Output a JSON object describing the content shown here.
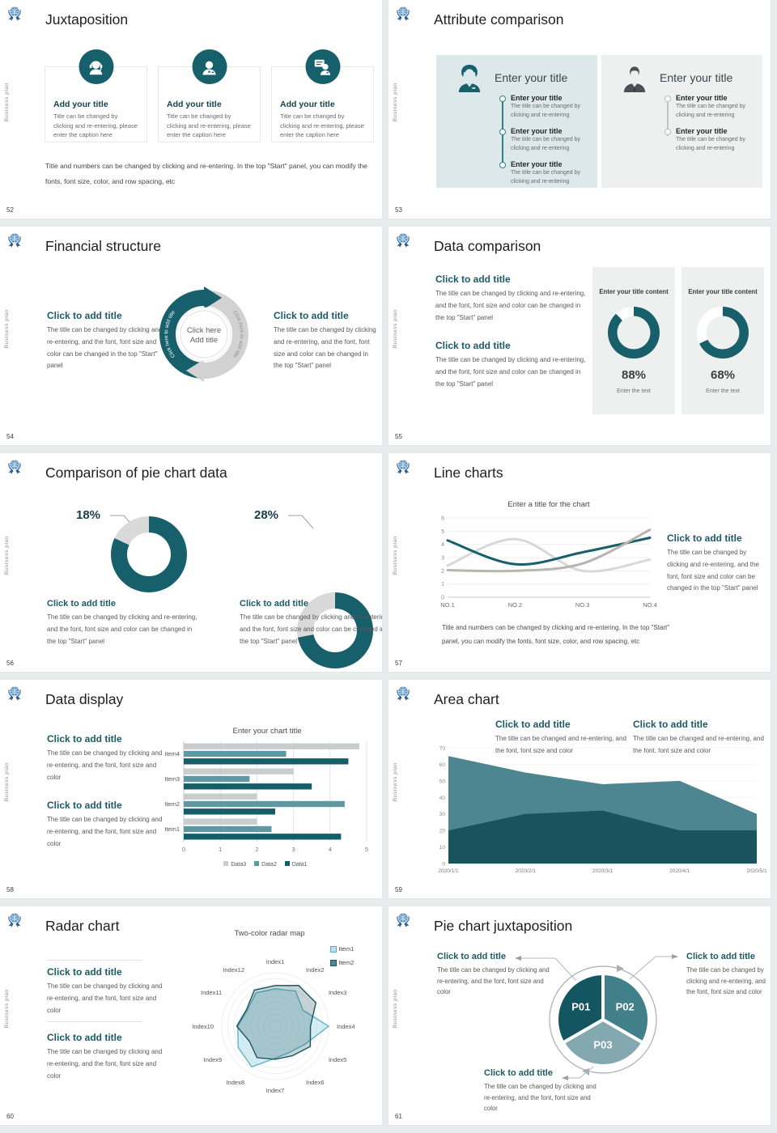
{
  "brand": {
    "sidebar_text": "Business plan",
    "accent": "#16606b"
  },
  "slides": {
    "s52": {
      "title": "Juxtaposition",
      "page": "52",
      "cards": [
        {
          "icon": "headset-person-icon",
          "title": "Add your title",
          "body": "Title can be changed by clicking and re-entering, please enter the caption here"
        },
        {
          "icon": "person-icon",
          "title": "Add your title",
          "body": "Title can be changed by clicking and re-entering, please enter the caption here"
        },
        {
          "icon": "presenter-person-icon",
          "title": "Add your title",
          "body": "Title can be changed by clicking and re-entering, please enter the caption here"
        }
      ],
      "note": "Title and numbers can be changed by clicking and re-entering. In the top \"Start\" panel, you can modify the fonts, font size, color, and row spacing, etc"
    },
    "s53": {
      "title": "Attribute comparison",
      "page": "53",
      "panels": [
        {
          "icon": "female-person-icon",
          "title": "Enter your title",
          "items": [
            {
              "t": "Enter your title",
              "b": "The title can be changed by clicking and re-entering"
            },
            {
              "t": "Enter your title",
              "b": "The title can be changed by clicking and re-entering"
            },
            {
              "t": "Enter your title",
              "b": "The title can be changed by clicking and re-entering"
            }
          ]
        },
        {
          "icon": "male-person-icon",
          "title": "Enter your title",
          "items": [
            {
              "t": "Enter your title",
              "b": "The title can be changed by clicking and re-entering"
            },
            {
              "t": "Enter your title",
              "b": "The title can be changed by clicking and re-entering"
            }
          ]
        }
      ]
    },
    "s54": {
      "title": "Financial structure",
      "page": "54",
      "left": {
        "t": "Click to add title",
        "b": "The title can be changed by clicking and re-entering, and the font, font size and color can be changed in the top \"Start\" panel"
      },
      "right": {
        "t": "Click to add title",
        "b": "The title can be changed by clicking and re-entering, and the font, font size and color can be changed in the top \"Start\" panel"
      },
      "arc_text_left": "Click here to add title",
      "arc_text_right": "Click here to add title",
      "center_line1": "Click here",
      "center_line2": "Add title"
    },
    "s55": {
      "title": "Data comparison",
      "page": "55",
      "blocks": [
        {
          "t": "Click to add title",
          "b": "The title can be changed by clicking and re-entering, and the font, font size and color can be changed in the top \"Start\" panel"
        },
        {
          "t": "Click to add title",
          "b": "The title can be changed by clicking and re-entering, and the font, font size and color can be changed in the top \"Start\" panel"
        }
      ]
    },
    "s56": {
      "title": "Comparison of pie chart data",
      "page": "56",
      "groups": [
        {
          "t": "Click to add title",
          "b": "The title can be changed by clicking and re-entering, and the font, font size and color can be changed in the top \"Start\" panel"
        },
        {
          "t": "Click to add title",
          "b": "The title can be changed by clicking and re-entering, and the font, font size and color can be changed in the top \"Start\" panel"
        }
      ]
    },
    "s57": {
      "title": "Line charts",
      "page": "57",
      "right": {
        "t": "Click to add title",
        "b": "The title can be changed by clicking and re-entering, and the font, font size and color can be changed in the top \"Start\" panel"
      },
      "note": "Title and numbers can be changed by clicking and re-entering. In the top \"Start\" panel, you can modify the fonts, font size, color, and row spacing, etc"
    },
    "s58": {
      "title": "Data display",
      "page": "58",
      "blocks": [
        {
          "t": "Click to add title",
          "b": "The title can be changed by clicking and re-entering, and the font, font size and color"
        },
        {
          "t": "Click to add title",
          "b": "The title can be changed by clicking and re-entering, and the font, font size and color"
        }
      ]
    },
    "s59": {
      "title": "Area chart",
      "page": "59",
      "blocks": [
        {
          "t": "Click to add title",
          "b": "The title can be changed and re-entering, and the font, font size and color"
        },
        {
          "t": "Click to add title",
          "b": "The title can be changed and re-entering, and the font, font size and color"
        }
      ]
    },
    "s60": {
      "title": "Radar chart",
      "page": "60",
      "blocks": [
        {
          "t": "Click to add title",
          "b": "The title can be changed by clicking and re-entering, and the font, font size and color"
        },
        {
          "t": "Click to add title",
          "b": "The title can be changed by clicking and re-entering, and the font, font size and color"
        }
      ]
    },
    "s61": {
      "title": "Pie chart juxtaposition",
      "page": "61",
      "blocks": [
        {
          "t": "Click to add title",
          "b": "The title can be changed by clicking and re-entering, and the font, font size and color"
        },
        {
          "t": "Click to add title",
          "b": "The title can be changed by clicking and re-entering, and the font, font size and color"
        },
        {
          "t": "Click to add title",
          "b": "The title can be changed by clicking and re-entering, and the font, font size and color"
        }
      ]
    }
  },
  "chart_data": [
    {
      "id": "s55-donut-1",
      "type": "pie",
      "title": "Enter your title content",
      "label": "88%",
      "caption": "Enter the text",
      "segments": [
        {
          "color": "#17606b",
          "pct": 88
        },
        {
          "color": "#ffffff",
          "pct": 12
        }
      ]
    },
    {
      "id": "s55-donut-2",
      "type": "pie",
      "title": "Enter your title content",
      "label": "68%",
      "caption": "Enter the text",
      "segments": [
        {
          "color": "#17606b",
          "pct": 68
        },
        {
          "color": "#ffffff",
          "pct": 32
        }
      ]
    },
    {
      "id": "s56-donut-1",
      "type": "pie",
      "label": "18%",
      "segments": [
        {
          "color": "#17606b",
          "pct": 82
        },
        {
          "color": "#d9d9d9",
          "pct": 18
        }
      ]
    },
    {
      "id": "s56-donut-2",
      "type": "pie",
      "label": "28%",
      "segments": [
        {
          "color": "#17606b",
          "pct": 72
        },
        {
          "color": "#d9d9d9",
          "pct": 28
        }
      ]
    },
    {
      "id": "s57-line",
      "type": "line",
      "title": "Enter a title for the chart",
      "categories": [
        "NO.1",
        "NO.2",
        "NO.3",
        "NO.4"
      ],
      "ylim": [
        0,
        6
      ],
      "yticks": [
        0,
        1,
        2,
        3,
        4,
        5,
        6
      ],
      "grid": true,
      "legend": false,
      "series": [
        {
          "color": "#17606b",
          "values": [
            4.3,
            2.5,
            3.4,
            4.5
          ]
        },
        {
          "color": "#d8d8d8",
          "values": [
            2.4,
            4.4,
            2.0,
            2.85
          ]
        },
        {
          "color": "#b9b4ae",
          "values": [
            2.05,
            2.0,
            2.55,
            5.1
          ]
        }
      ]
    },
    {
      "id": "s58-bar",
      "type": "bar",
      "title": "Enter your chart title",
      "orientation": "horizontal",
      "categories": [
        "Item1",
        "Item2",
        "Item3",
        "Item4"
      ],
      "xlim": [
        0,
        5
      ],
      "xticks": [
        0,
        1,
        2,
        3,
        4,
        5
      ],
      "legend_position": "bottom",
      "series": [
        {
          "name": "Data1",
          "color": "#155d68",
          "values": [
            4.3,
            2.5,
            3.5,
            4.5
          ]
        },
        {
          "name": "Data2",
          "color": "#5e98a2",
          "values": [
            2.4,
            4.4,
            1.8,
            2.8
          ]
        },
        {
          "name": "Data3",
          "color": "#c9cdce",
          "values": [
            2.0,
            2.0,
            3.0,
            4.8
          ]
        }
      ]
    },
    {
      "id": "s59-area",
      "type": "area",
      "categories": [
        "2020/1/1",
        "2020/2/1",
        "2020/3/1",
        "2020/4/1",
        "2020/5/1"
      ],
      "ylim": [
        0,
        70
      ],
      "yticks": [
        0,
        10,
        20,
        30,
        40,
        50,
        60,
        70
      ],
      "series": [
        {
          "color": "#19535e",
          "values": [
            20,
            30,
            32,
            20,
            20
          ]
        },
        {
          "color": "#4d8691",
          "values": [
            65,
            55,
            48,
            50,
            30
          ]
        }
      ]
    },
    {
      "id": "s60-radar",
      "type": "radar",
      "title": "Two-color radar map",
      "rmax": 10,
      "categories": [
        "Index1",
        "Index2",
        "Index3",
        "Index4",
        "Index5",
        "Index6",
        "Index7",
        "Index8",
        "Index9",
        "Index10",
        "Index11",
        "Index12"
      ],
      "series": [
        {
          "name": "Item1",
          "color": "#63b3c7",
          "fill": "rgba(160,214,226,0.45)",
          "values": [
            7,
            7.6,
            6,
            10,
            6.6,
            5.6,
            6,
            8.8,
            8,
            7,
            6,
            7.2
          ]
        },
        {
          "name": "Item2",
          "color": "#1b5560",
          "fill": "rgba(27,85,96,0.25)",
          "values": [
            7.6,
            8.8,
            8.8,
            6.6,
            7.6,
            6.4,
            6.2,
            6.8,
            5.6,
            7.2,
            6.2,
            7.8
          ]
        }
      ]
    },
    {
      "id": "s61-pie",
      "type": "pie",
      "labels": [
        "P01",
        "P02",
        "P03"
      ],
      "values": [
        33.3,
        33.3,
        33.3
      ],
      "colors": [
        "#135661",
        "#417f89",
        "#84a8b0"
      ]
    }
  ]
}
